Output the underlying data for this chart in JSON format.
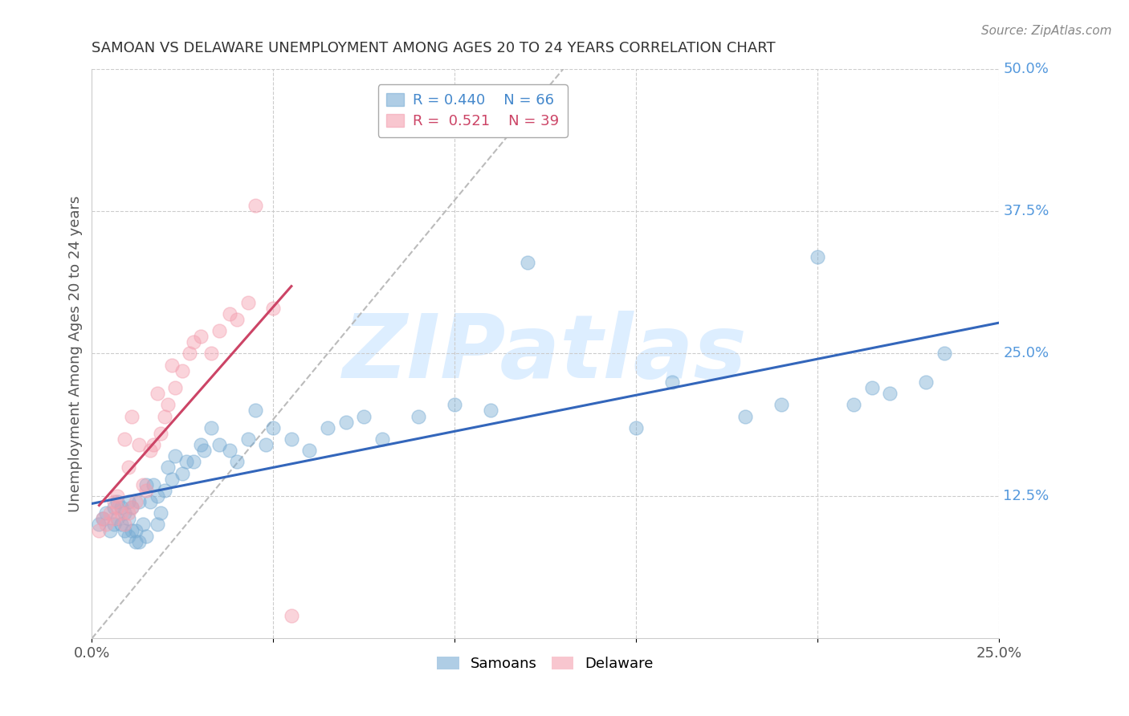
{
  "title": "SAMOAN VS DELAWARE UNEMPLOYMENT AMONG AGES 20 TO 24 YEARS CORRELATION CHART",
  "source": "Source: ZipAtlas.com",
  "ylabel": "Unemployment Among Ages 20 to 24 years",
  "xlim": [
    0.0,
    0.25
  ],
  "ylim": [
    0.0,
    0.5
  ],
  "ytick_labels_right": [
    "12.5%",
    "25.0%",
    "37.5%",
    "50.0%"
  ],
  "ytick_vals_right": [
    0.125,
    0.25,
    0.375,
    0.5
  ],
  "blue_color": "#7aadd4",
  "pink_color": "#f4a0b0",
  "blue_line_color": "#3366bb",
  "pink_line_color": "#cc4466",
  "blue_R": 0.44,
  "blue_N": 66,
  "pink_R": 0.521,
  "pink_N": 39,
  "watermark": "ZIPatlas",
  "watermark_color": "#ddeeff",
  "blue_scatter_x": [
    0.002,
    0.003,
    0.004,
    0.005,
    0.006,
    0.006,
    0.007,
    0.007,
    0.008,
    0.008,
    0.009,
    0.009,
    0.01,
    0.01,
    0.01,
    0.011,
    0.011,
    0.012,
    0.012,
    0.013,
    0.013,
    0.014,
    0.015,
    0.015,
    0.016,
    0.017,
    0.018,
    0.018,
    0.019,
    0.02,
    0.021,
    0.022,
    0.023,
    0.025,
    0.026,
    0.028,
    0.03,
    0.031,
    0.033,
    0.035,
    0.038,
    0.04,
    0.043,
    0.045,
    0.048,
    0.05,
    0.055,
    0.06,
    0.065,
    0.07,
    0.075,
    0.08,
    0.09,
    0.1,
    0.11,
    0.12,
    0.15,
    0.16,
    0.18,
    0.19,
    0.2,
    0.21,
    0.215,
    0.22,
    0.23,
    0.235
  ],
  "blue_scatter_y": [
    0.1,
    0.105,
    0.11,
    0.095,
    0.1,
    0.115,
    0.105,
    0.12,
    0.1,
    0.115,
    0.095,
    0.11,
    0.09,
    0.105,
    0.12,
    0.095,
    0.115,
    0.085,
    0.095,
    0.085,
    0.12,
    0.1,
    0.09,
    0.135,
    0.12,
    0.135,
    0.1,
    0.125,
    0.11,
    0.13,
    0.15,
    0.14,
    0.16,
    0.145,
    0.155,
    0.155,
    0.17,
    0.165,
    0.185,
    0.17,
    0.165,
    0.155,
    0.175,
    0.2,
    0.17,
    0.185,
    0.175,
    0.165,
    0.185,
    0.19,
    0.195,
    0.175,
    0.195,
    0.205,
    0.2,
    0.33,
    0.185,
    0.225,
    0.195,
    0.205,
    0.335,
    0.205,
    0.22,
    0.215,
    0.225,
    0.25
  ],
  "pink_scatter_x": [
    0.002,
    0.003,
    0.004,
    0.005,
    0.006,
    0.006,
    0.007,
    0.007,
    0.008,
    0.009,
    0.009,
    0.01,
    0.01,
    0.011,
    0.011,
    0.012,
    0.013,
    0.014,
    0.015,
    0.016,
    0.017,
    0.018,
    0.019,
    0.02,
    0.021,
    0.022,
    0.023,
    0.025,
    0.027,
    0.028,
    0.03,
    0.033,
    0.035,
    0.038,
    0.04,
    0.043,
    0.045,
    0.05,
    0.055
  ],
  "pink_scatter_y": [
    0.095,
    0.105,
    0.1,
    0.11,
    0.105,
    0.12,
    0.115,
    0.125,
    0.11,
    0.1,
    0.175,
    0.11,
    0.15,
    0.115,
    0.195,
    0.12,
    0.17,
    0.135,
    0.13,
    0.165,
    0.17,
    0.215,
    0.18,
    0.195,
    0.205,
    0.24,
    0.22,
    0.235,
    0.25,
    0.26,
    0.265,
    0.25,
    0.27,
    0.285,
    0.28,
    0.295,
    0.38,
    0.29,
    0.02
  ]
}
